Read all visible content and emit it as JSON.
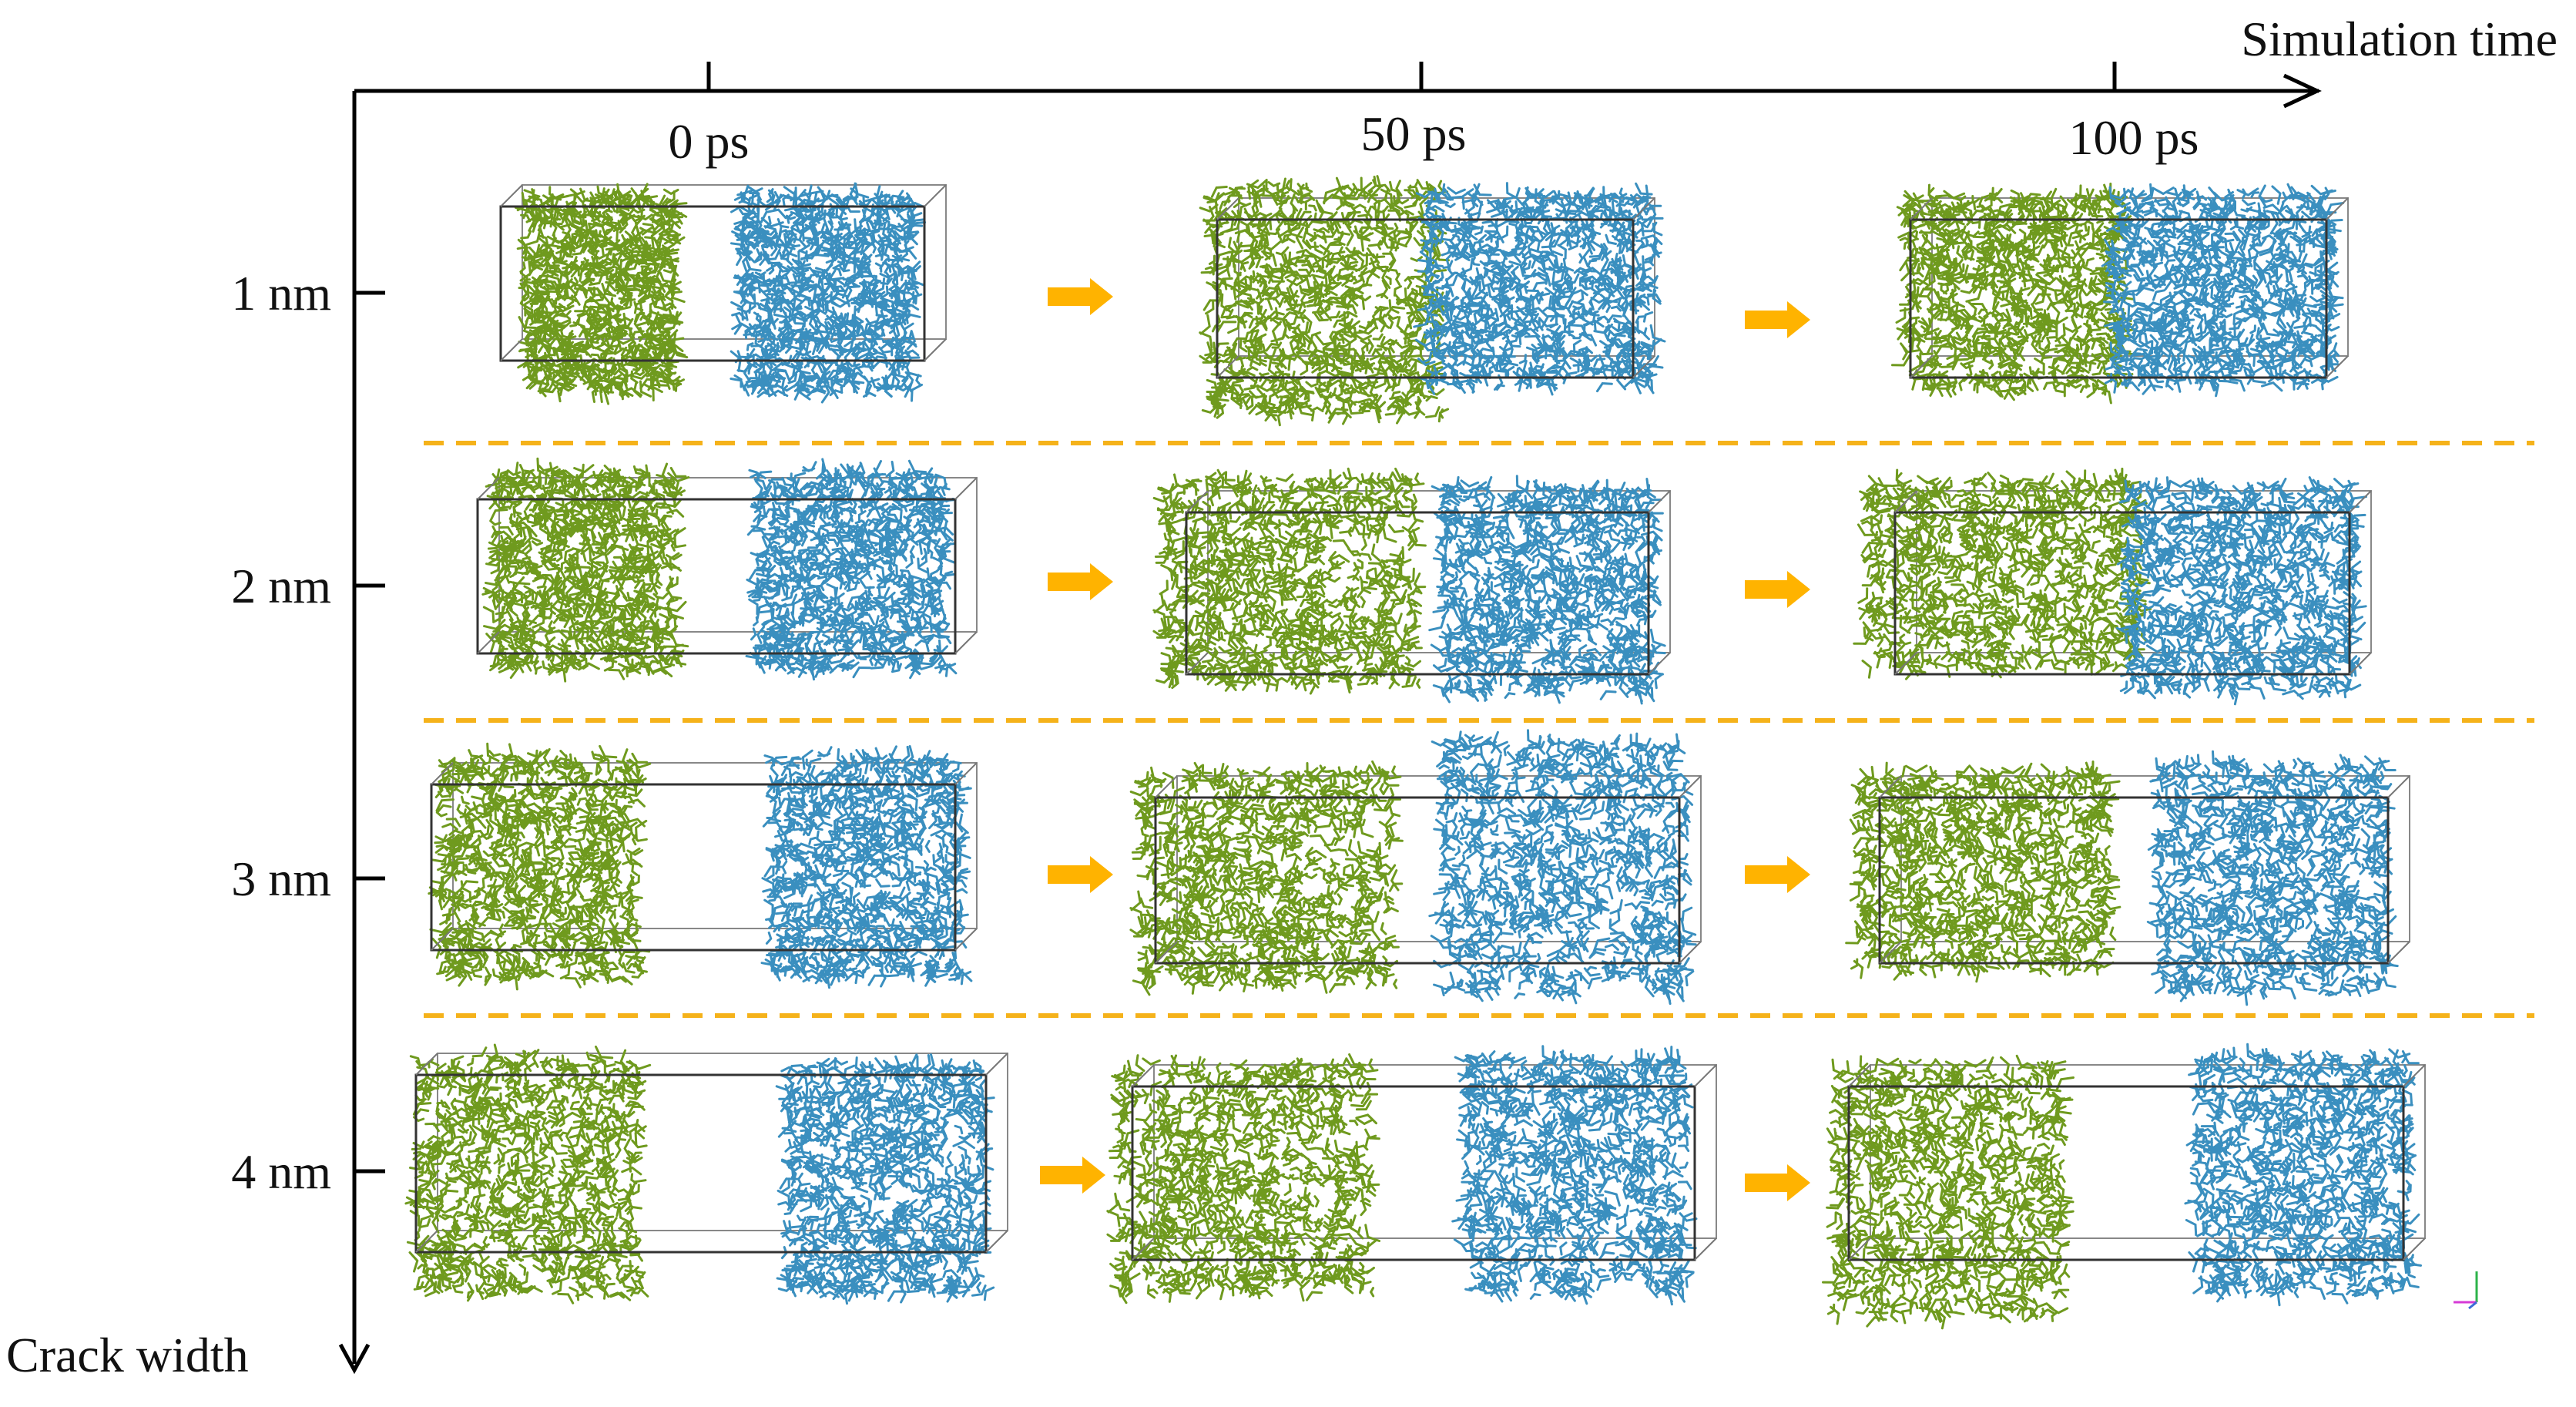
{
  "axes": {
    "time_label": "Simulation time",
    "width_label": "Crack width"
  },
  "times": [
    "0 ps",
    "50 ps",
    "100 ps"
  ],
  "widths": [
    "1 nm",
    "2 nm",
    "3 nm",
    "4 nm"
  ],
  "colors": {
    "axis": "#000000",
    "box": "#333333",
    "green_molecule": "#6f9a1e",
    "blue_molecule": "#3a8fbf",
    "arrow": "#ffb300",
    "divider": "#f5b21a"
  }
}
